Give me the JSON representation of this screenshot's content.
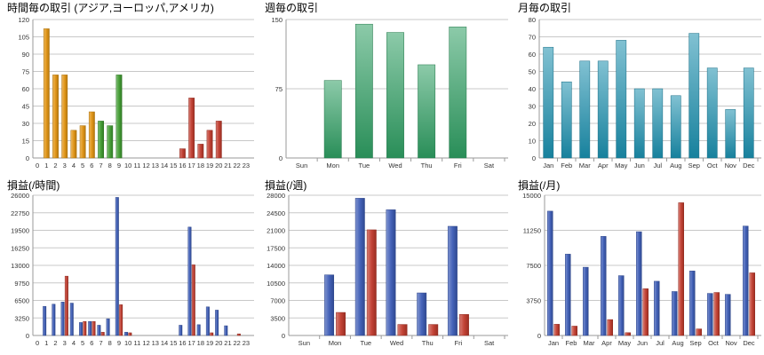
{
  "chart_data": [
    {
      "id": "hourly-trades",
      "type": "bar",
      "title": "時間毎の取引 (アジア,ヨーロッパ,アメリカ)",
      "categories": [
        "0",
        "1",
        "2",
        "3",
        "4",
        "5",
        "6",
        "7",
        "8",
        "9",
        "10",
        "11",
        "12",
        "13",
        "14",
        "15",
        "16",
        "17",
        "18",
        "19",
        "20",
        "21",
        "22",
        "23"
      ],
      "values": [
        0,
        112,
        72,
        72,
        24,
        28,
        40,
        32,
        28,
        72,
        0,
        0,
        0,
        0,
        0,
        0,
        8,
        52,
        12,
        24,
        32,
        0,
        0,
        0
      ],
      "bar_colors_by_category": {
        "0-6": "#e0920f",
        "7-9": "#3d9a2e",
        "10-23": "#c0392b"
      },
      "color_ranges": [
        {
          "from": 0,
          "to": 6,
          "color": "#e0920f"
        },
        {
          "from": 7,
          "to": 9,
          "color": "#3d9a2e"
        },
        {
          "from": 10,
          "to": 23,
          "color": "#c0392b"
        }
      ],
      "yticks": [
        0,
        15,
        30,
        45,
        60,
        75,
        90,
        105,
        120
      ],
      "ylim": [
        0,
        120
      ],
      "grid": true
    },
    {
      "id": "weekly-trades",
      "type": "bar",
      "title": "週毎の取引",
      "categories": [
        "Sun",
        "Mon",
        "Tue",
        "Wed",
        "Thu",
        "Fri",
        "Sat"
      ],
      "values": [
        0,
        84,
        145,
        136,
        101,
        142,
        0
      ],
      "color": "#2e9e62",
      "yticks": [
        0,
        75,
        150
      ],
      "ylim": [
        0,
        150
      ],
      "grid": true
    },
    {
      "id": "monthly-trades",
      "type": "bar",
      "title": "月毎の取引",
      "categories": [
        "Jan",
        "Feb",
        "Mar",
        "Apr",
        "May",
        "Jun",
        "Jul",
        "Aug",
        "Sep",
        "Oct",
        "Nov",
        "Dec"
      ],
      "values": [
        64,
        44,
        56,
        56,
        68,
        40,
        40,
        36,
        72,
        52,
        28,
        52
      ],
      "color": "#1a8fae",
      "yticks": [
        0,
        10,
        20,
        30,
        40,
        50,
        60,
        70,
        80
      ],
      "ylim": [
        0,
        80
      ],
      "grid": true
    },
    {
      "id": "pl-hourly",
      "type": "bar",
      "title": "損益(/時間)",
      "categories": [
        "0",
        "1",
        "2",
        "3",
        "4",
        "5",
        "6",
        "7",
        "8",
        "9",
        "10",
        "11",
        "12",
        "13",
        "14",
        "15",
        "16",
        "17",
        "18",
        "19",
        "20",
        "21",
        "22",
        "23"
      ],
      "series": [
        {
          "color": "#3b5bb5",
          "values": [
            0,
            5400,
            5800,
            6200,
            6000,
            2400,
            2600,
            1900,
            3100,
            25600,
            600,
            0,
            0,
            0,
            0,
            0,
            1900,
            20100,
            2000,
            5300,
            4700,
            1800,
            0,
            0
          ]
        },
        {
          "color": "#c0392b",
          "values": [
            0,
            0,
            0,
            11000,
            0,
            2600,
            2600,
            600,
            0,
            5700,
            500,
            0,
            0,
            0,
            0,
            0,
            0,
            13100,
            0,
            500,
            0,
            0,
            300,
            0
          ]
        }
      ],
      "yticks": [
        0,
        3250,
        6500,
        9750,
        13000,
        16250,
        19500,
        22750,
        26000
      ],
      "ylim": [
        0,
        26000
      ],
      "grid": true
    },
    {
      "id": "pl-weekly",
      "type": "bar",
      "title": "損益(/週)",
      "categories": [
        "Sun",
        "Mon",
        "Tue",
        "Wed",
        "Thu",
        "Fri",
        "Sat"
      ],
      "series": [
        {
          "color": "#3b5bb5",
          "values": [
            0,
            12100,
            27400,
            25100,
            8500,
            21800,
            0
          ]
        },
        {
          "color": "#c0392b",
          "values": [
            0,
            4600,
            21100,
            2200,
            2200,
            4200,
            0
          ]
        }
      ],
      "yticks": [
        0,
        3500,
        7000,
        10500,
        14000,
        17500,
        21000,
        24500,
        28000
      ],
      "ylim": [
        0,
        28000
      ],
      "grid": true
    },
    {
      "id": "pl-monthly",
      "type": "bar",
      "title": "損益(/月)",
      "categories": [
        "Jan",
        "Feb",
        "Mar",
        "Apr",
        "May",
        "Jun",
        "Jul",
        "Aug",
        "Sep",
        "Oct",
        "Nov",
        "Dec"
      ],
      "series": [
        {
          "color": "#3b5bb5",
          "values": [
            13300,
            8700,
            7300,
            10600,
            6400,
            11100,
            5800,
            4700,
            6900,
            4500,
            4400,
            11700
          ]
        },
        {
          "color": "#c0392b",
          "values": [
            1200,
            1000,
            0,
            1700,
            300,
            5000,
            0,
            14200,
            700,
            4600,
            0,
            6700
          ]
        }
      ],
      "yticks": [
        0,
        3750,
        7500,
        11250,
        15000
      ],
      "ylim": [
        0,
        15000
      ],
      "grid": true
    }
  ]
}
